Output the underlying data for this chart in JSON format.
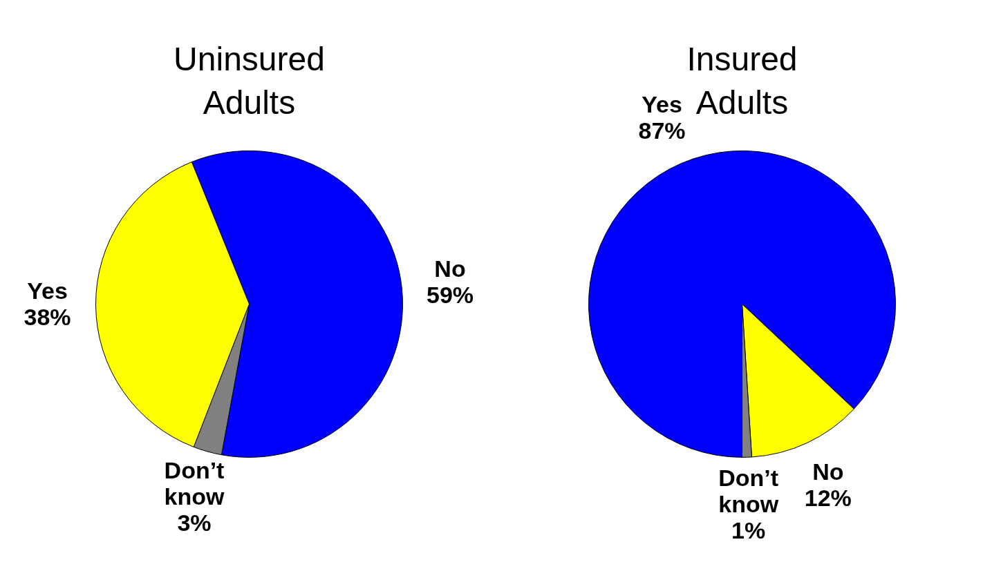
{
  "chart_data": [
    {
      "type": "pie",
      "title": "Uninsured\nAdults",
      "categories": [
        "No",
        "Don’t\nknow",
        "Yes"
      ],
      "values": [
        59,
        3,
        38
      ],
      "colors": [
        "#0000ff",
        "#808080",
        "#ffff00"
      ],
      "value_labels": [
        "59%",
        "3%",
        "38%"
      ],
      "legend": false
    },
    {
      "type": "pie",
      "title": "Insured\nAdults",
      "categories": [
        "Yes",
        "No",
        "Don’t\nknow"
      ],
      "values": [
        87,
        12,
        1
      ],
      "colors": [
        "#0000ff",
        "#ffff00",
        "#808080"
      ],
      "value_labels": [
        "87%",
        "12%",
        "1%"
      ],
      "legend": false
    }
  ]
}
